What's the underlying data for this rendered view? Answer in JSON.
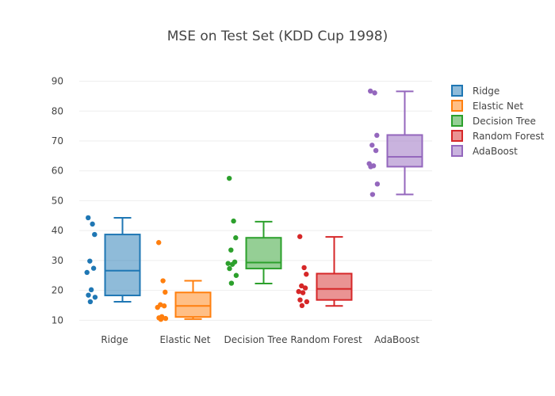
{
  "chart_data": {
    "type": "box",
    "title": "MSE on Test Set (KDD Cup 1998)",
    "xlabel": "",
    "ylabel": "",
    "ylim": [
      8.5,
      92
    ],
    "yticks": [
      10,
      20,
      30,
      40,
      50,
      60,
      70,
      80,
      90
    ],
    "grid": true,
    "legend_position": "top-right",
    "categories": [
      "Ridge",
      "Elastic Net",
      "Decision Tree",
      "Random Forest",
      "AdaBoost"
    ],
    "series": [
      {
        "name": "Ridge",
        "color": "#1f77b4",
        "points": [
          44.3,
          42.2,
          38.7,
          29.8,
          27.4,
          26.0,
          20.2,
          18.4,
          17.7,
          16.2
        ],
        "min": 16.2,
        "q1": 18.3,
        "median": 26.6,
        "q3": 38.7,
        "max": 44.3
      },
      {
        "name": "Elastic Net",
        "color": "#ff7f0e",
        "points": [
          36.0,
          23.2,
          19.4,
          15.2,
          14.8,
          14.3,
          11.2,
          10.8,
          10.6,
          10.3
        ],
        "min": 10.4,
        "q1": 11.1,
        "median": 14.8,
        "q3": 19.3,
        "max": 23.2
      },
      {
        "name": "Decision Tree",
        "color": "#2ca02c",
        "points": [
          57.5,
          43.2,
          37.6,
          33.5,
          29.5,
          29.0,
          28.7,
          27.3,
          25.0,
          22.4
        ],
        "min": 22.3,
        "q1": 27.3,
        "median": 29.3,
        "q3": 37.6,
        "max": 43.0
      },
      {
        "name": "Random Forest",
        "color": "#d62728",
        "points": [
          38.0,
          27.6,
          25.4,
          21.5,
          20.8,
          19.6,
          19.2,
          16.8,
          16.2,
          14.9
        ],
        "min": 14.8,
        "q1": 16.8,
        "median": 20.5,
        "q3": 25.6,
        "max": 37.9
      },
      {
        "name": "AdaBoost",
        "color": "#9467bd",
        "points": [
          86.7,
          86.1,
          71.9,
          68.6,
          66.8,
          62.4,
          61.7,
          61.4,
          55.6,
          52.1
        ],
        "min": 52.1,
        "q1": 61.4,
        "median": 64.7,
        "q3": 72.0,
        "max": 86.6
      }
    ]
  }
}
